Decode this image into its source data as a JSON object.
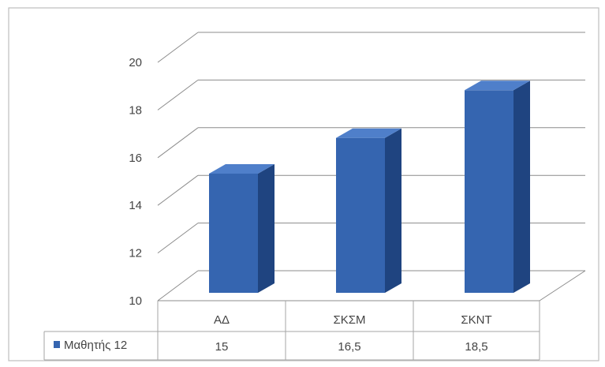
{
  "chart_data": {
    "type": "bar",
    "categories": [
      "ΑΔ",
      "ΣΚΣΜ",
      "ΣΚΝΤ"
    ],
    "series": [
      {
        "name": "Μαθητής 12",
        "values": [
          15,
          16.5,
          18.5
        ]
      }
    ],
    "value_labels": [
      "15",
      "16,5",
      "18,5"
    ],
    "ylim": [
      10,
      20
    ],
    "yticks": [
      10,
      12,
      14,
      16,
      18,
      20
    ],
    "grid": true,
    "legend": "data-table-left",
    "style": "3d-column",
    "colors": {
      "bar_front": "#3565b0",
      "bar_side": "#1f4480",
      "bar_top": "#4f7fca",
      "gridline": "#8c8c8c",
      "text": "#444444"
    }
  }
}
